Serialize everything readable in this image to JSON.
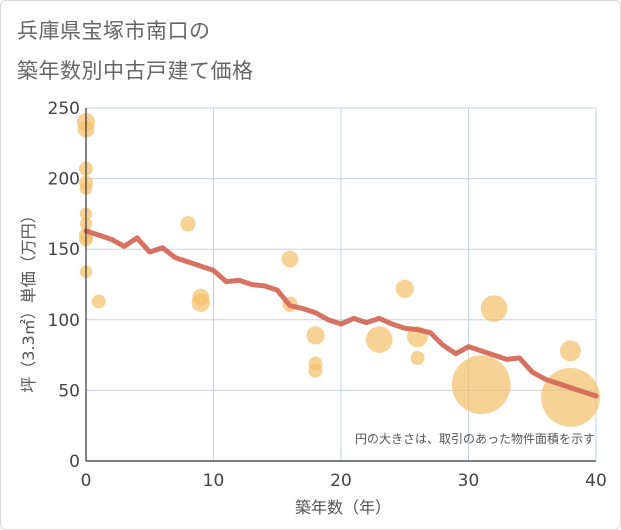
{
  "title_line1": "兵庫県宝塚市南口の",
  "title_line2": "築年数別中古戸建て価格",
  "chart_data": {
    "type": "scatter",
    "xlabel": "築年数（年）",
    "ylabel": "坪（3.3㎡）単価（万円）",
    "xlim": [
      0,
      40
    ],
    "ylim": [
      0,
      250
    ],
    "xticks": [
      0,
      10,
      20,
      30,
      40
    ],
    "yticks": [
      0,
      50,
      100,
      150,
      200,
      250
    ],
    "grid": true,
    "note": "円の大きさは、取引のあった物件面積を示す",
    "colors": {
      "bubble": "#f3c06b",
      "line": "#d46a5a",
      "grid": "#c5d0e0"
    },
    "points": [
      {
        "x": 0,
        "y": 240,
        "s": 1.3
      },
      {
        "x": 0,
        "y": 235,
        "s": 1.2
      },
      {
        "x": 0,
        "y": 207,
        "s": 1.0
      },
      {
        "x": 0,
        "y": 197,
        "s": 1.0
      },
      {
        "x": 0,
        "y": 193,
        "s": 0.9
      },
      {
        "x": 0,
        "y": 175,
        "s": 0.9
      },
      {
        "x": 0,
        "y": 168,
        "s": 0.9
      },
      {
        "x": 0,
        "y": 160,
        "s": 1.0
      },
      {
        "x": 0,
        "y": 157,
        "s": 1.0
      },
      {
        "x": 0,
        "y": 134,
        "s": 0.9
      },
      {
        "x": 1,
        "y": 113,
        "s": 1.0
      },
      {
        "x": 8,
        "y": 168,
        "s": 1.1
      },
      {
        "x": 9,
        "y": 116,
        "s": 1.2
      },
      {
        "x": 9,
        "y": 112,
        "s": 1.3
      },
      {
        "x": 16,
        "y": 143,
        "s": 1.2
      },
      {
        "x": 16,
        "y": 111,
        "s": 1.1
      },
      {
        "x": 18,
        "y": 89,
        "s": 1.3
      },
      {
        "x": 18,
        "y": 69,
        "s": 1.0
      },
      {
        "x": 18,
        "y": 64,
        "s": 1.0
      },
      {
        "x": 23,
        "y": 86,
        "s": 1.9
      },
      {
        "x": 25,
        "y": 122,
        "s": 1.3
      },
      {
        "x": 26,
        "y": 88,
        "s": 1.5
      },
      {
        "x": 26,
        "y": 73,
        "s": 1.0
      },
      {
        "x": 31,
        "y": 54,
        "s": 4.2
      },
      {
        "x": 32,
        "y": 108,
        "s": 1.9
      },
      {
        "x": 38,
        "y": 78,
        "s": 1.5
      },
      {
        "x": 38,
        "y": 45,
        "s": 4.2
      }
    ],
    "trend": {
      "x": [
        0,
        1,
        2,
        3,
        4,
        5,
        6,
        7,
        8,
        9,
        10,
        11,
        12,
        13,
        14,
        15,
        16,
        17,
        18,
        19,
        20,
        21,
        22,
        23,
        24,
        25,
        26,
        27,
        28,
        29,
        30,
        31,
        32,
        33,
        34,
        35,
        36,
        37,
        38,
        39,
        40
      ],
      "y": [
        163,
        160,
        157,
        152,
        158,
        148,
        151,
        144,
        141,
        138,
        135,
        127,
        128,
        125,
        124,
        121,
        110,
        108,
        105,
        100,
        97,
        101,
        98,
        101,
        97,
        94,
        93,
        91,
        82,
        76,
        81,
        78,
        75,
        72,
        73,
        63,
        58,
        55,
        52,
        49,
        46
      ]
    }
  }
}
